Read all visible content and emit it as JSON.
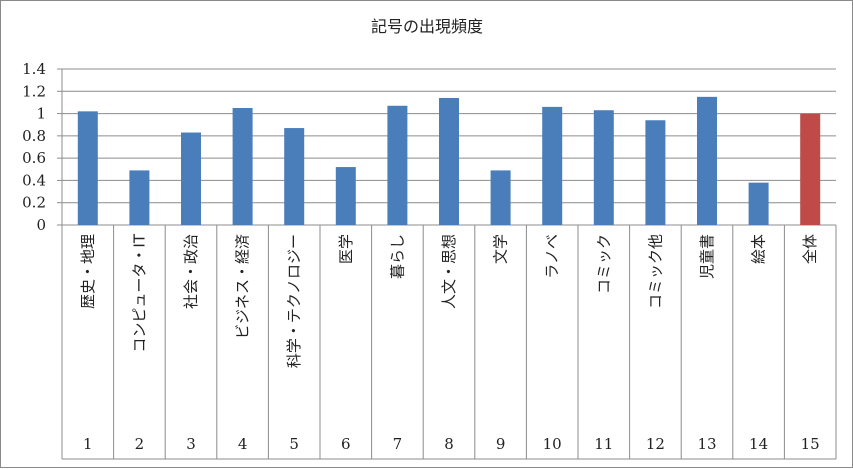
{
  "chart_data": {
    "type": "bar",
    "title": "記号の出現頻度",
    "xlabel": "",
    "ylabel": "",
    "ylim": [
      0,
      1.4
    ],
    "yticks": [
      "0",
      "0.2",
      "0.4",
      "0.6",
      "0.8",
      "1",
      "1.2",
      "1.4"
    ],
    "grid": true,
    "legend": "none",
    "categories": [
      "歴史・地理",
      "コンピュータ・IT",
      "社会・政治",
      "ビジネス・経済",
      "科学・テクノロジー",
      "医学",
      "暮らし",
      "人文・思想",
      "文学",
      "ラノベ",
      "コミック",
      "コミック他",
      "児童書",
      "絵本",
      "全体"
    ],
    "numbers": [
      "1",
      "2",
      "3",
      "4",
      "5",
      "6",
      "7",
      "8",
      "9",
      "10",
      "11",
      "12",
      "13",
      "14",
      "15"
    ],
    "values": [
      1.02,
      0.49,
      0.83,
      1.05,
      0.87,
      0.52,
      1.07,
      1.14,
      0.49,
      1.06,
      1.03,
      0.94,
      1.15,
      0.38,
      1.0
    ],
    "bar_color": "#4a7ebb",
    "highlight_color": "#be4b48",
    "highlight_index": 14
  }
}
